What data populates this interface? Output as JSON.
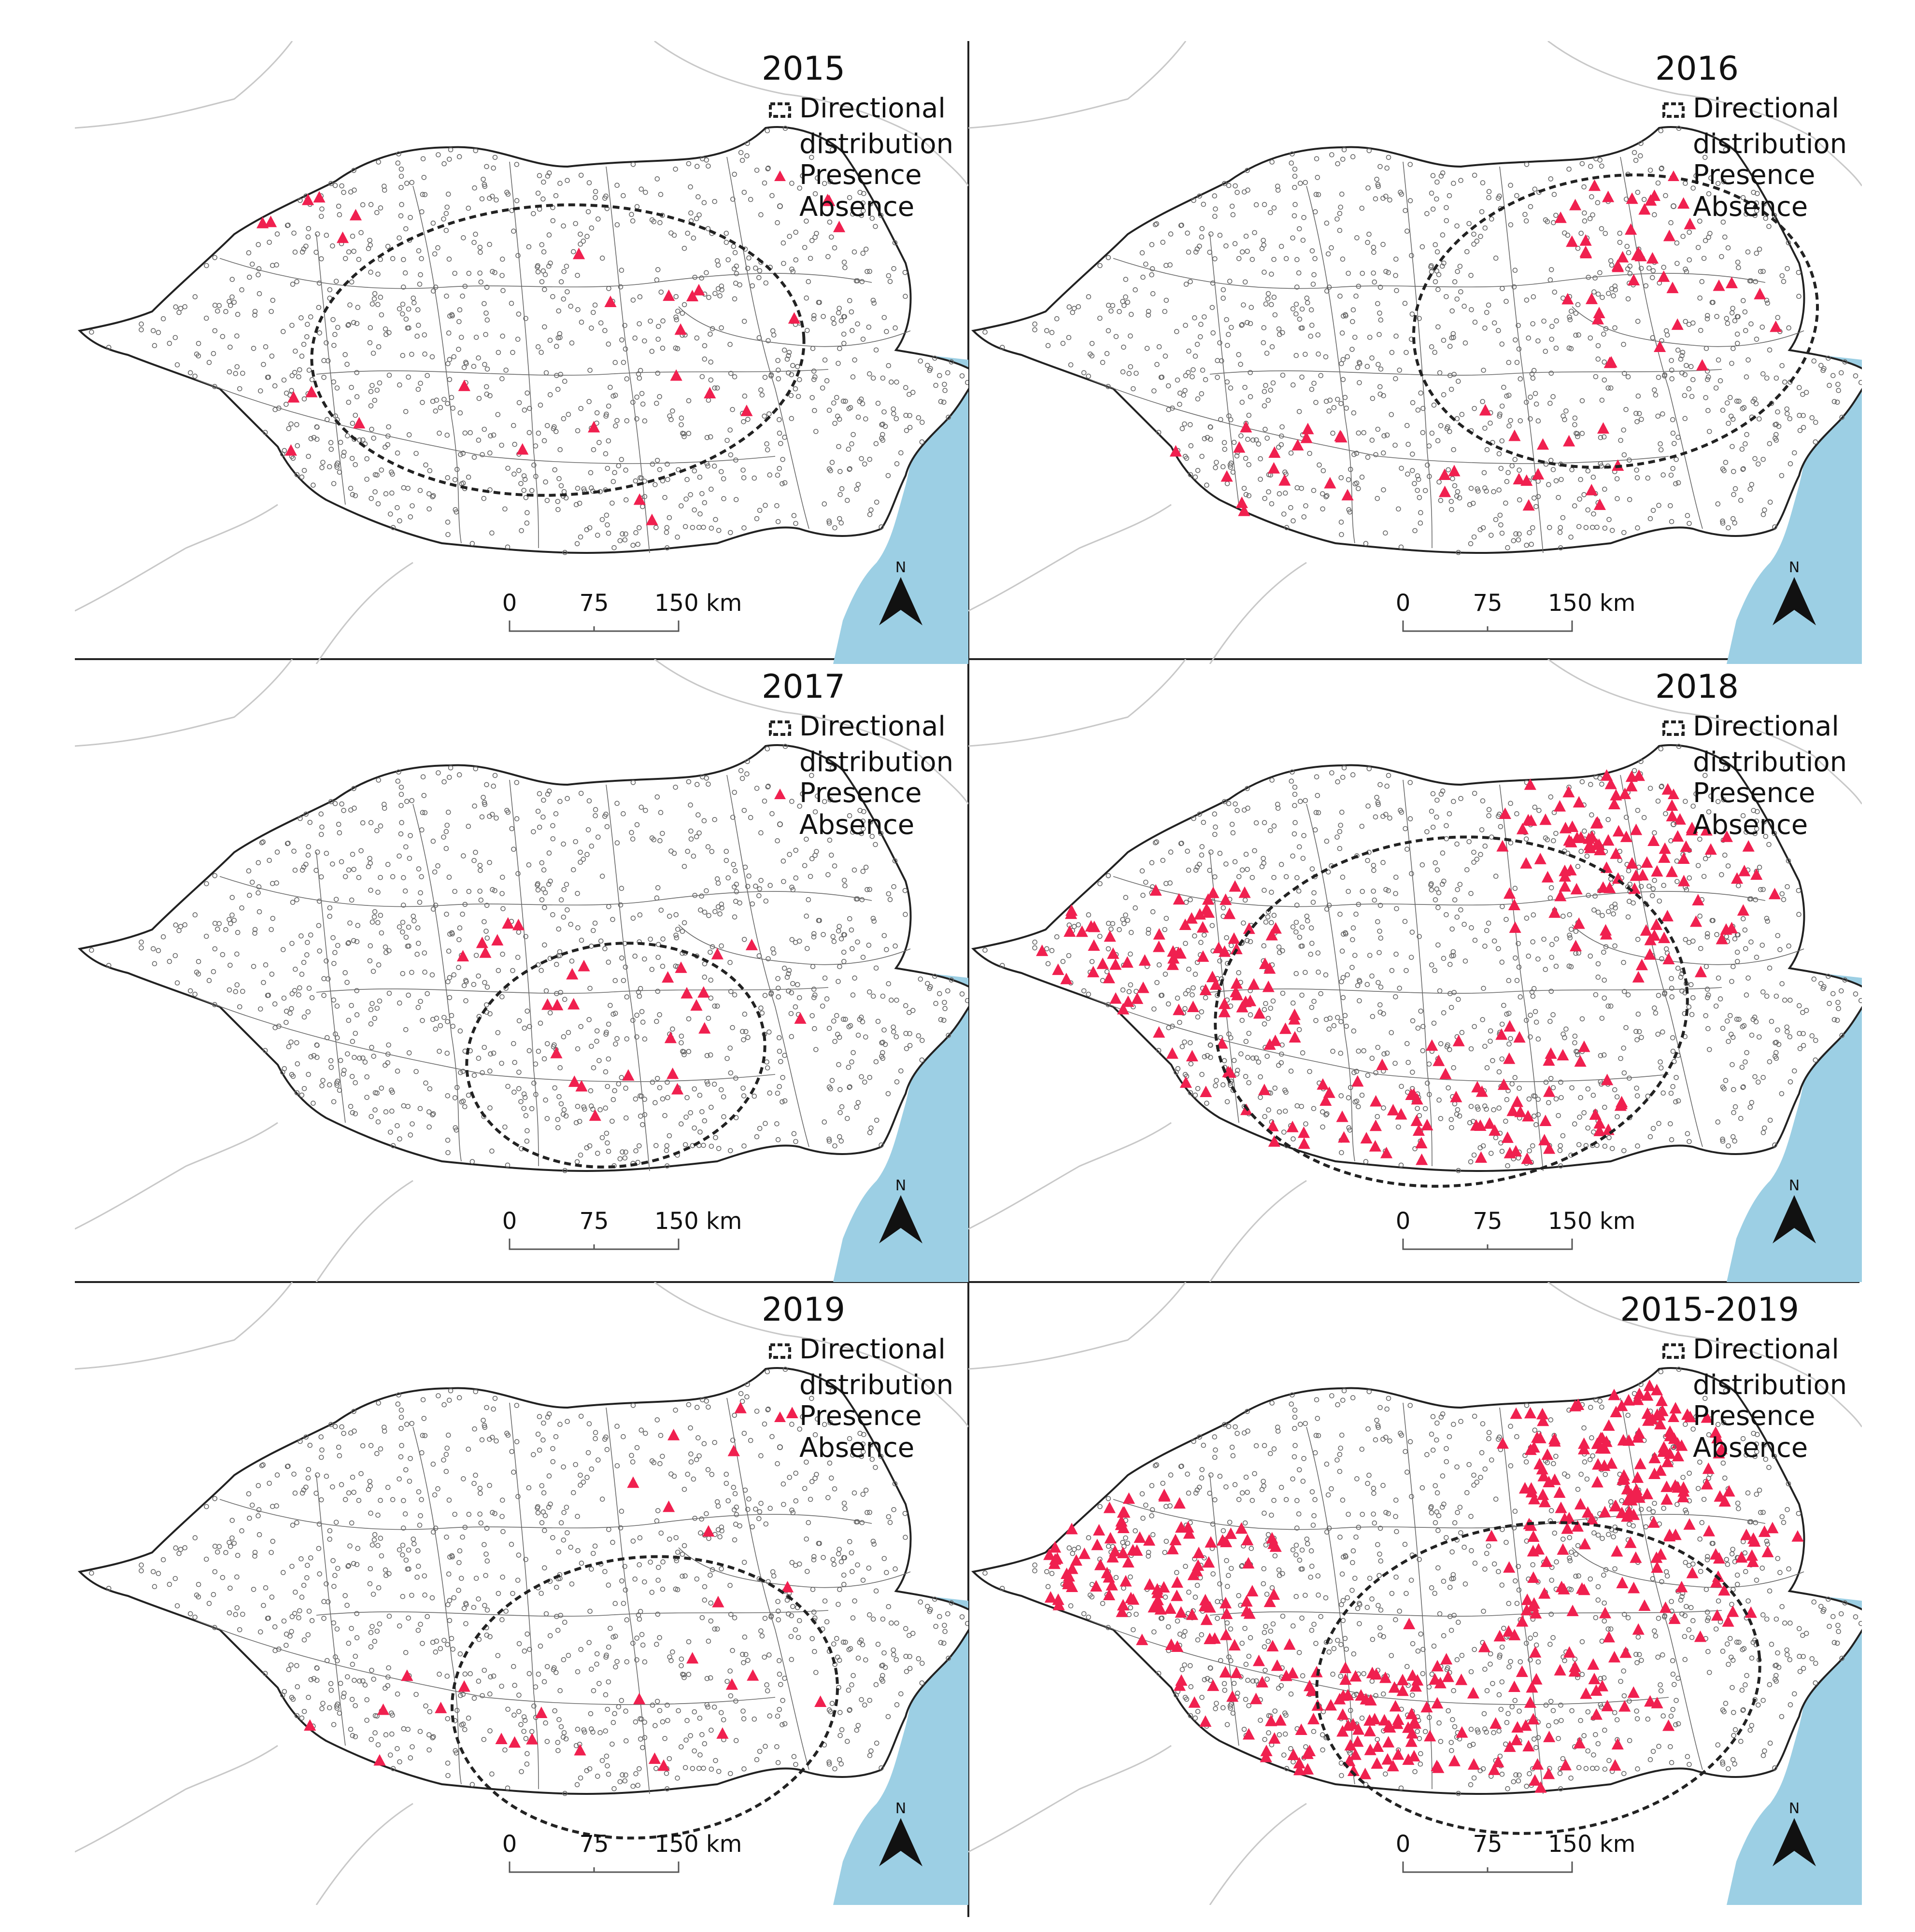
{
  "colors": {
    "presence": "#f0204f",
    "sea": "#9ccfe4",
    "outline": "#222222",
    "absence_marker": "#666666",
    "neighbor_border": "#c8c8c8",
    "internal_border": "#6a6a6a",
    "ellipse": "#222222"
  },
  "legend": {
    "directional_line1": "Directional",
    "directional_line2": "distribution",
    "presence": "Presence",
    "absence": "Absence"
  },
  "scale_bar": {
    "labels": [
      "0",
      "75",
      "150 km"
    ]
  },
  "north_arrow": {
    "label": "N",
    "icon": "north-arrow-icon"
  },
  "panels": [
    {
      "title": "2015",
      "presence_level": "low"
    },
    {
      "title": "2016",
      "presence_level": "medium"
    },
    {
      "title": "2017",
      "presence_level": "low"
    },
    {
      "title": "2018",
      "presence_level": "high"
    },
    {
      "title": "2019",
      "presence_level": "low"
    },
    {
      "title": "2015-2019",
      "presence_level": "very-high"
    }
  ]
}
